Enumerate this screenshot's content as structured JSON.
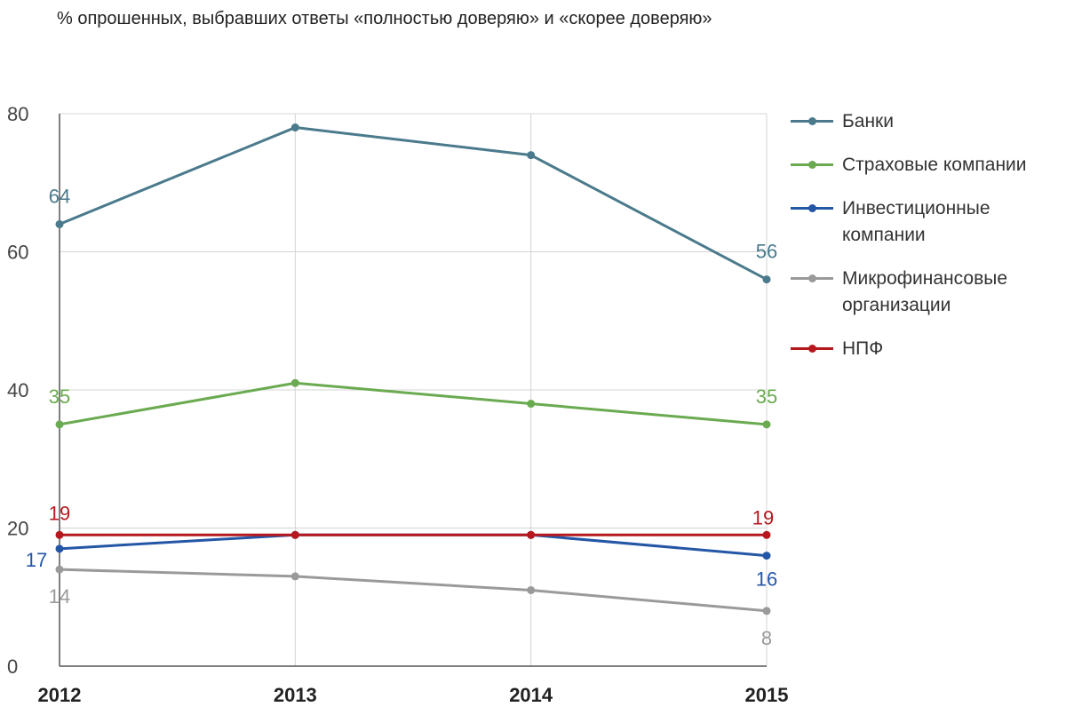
{
  "chart_data": {
    "type": "line",
    "title": "% опрошенных, выбравших ответы «полностью доверяю» и «скорее доверяю»",
    "xlabel": "",
    "ylabel": "",
    "categories": [
      "2012",
      "2013",
      "2014",
      "2015"
    ],
    "ylim": [
      0,
      80
    ],
    "yticks": [
      "0",
      "20",
      "40",
      "60",
      "80"
    ],
    "grid": true,
    "legend_position": "right",
    "series": [
      {
        "name": "Банки",
        "color": "#4a7a8c",
        "values": [
          64,
          78,
          74,
          56
        ],
        "labels": {
          "first": "64",
          "last": "56"
        }
      },
      {
        "name": "Страховые компании",
        "color": "#6aaa50",
        "values": [
          35,
          41,
          38,
          35
        ],
        "labels": {
          "first": "35",
          "last": "35"
        }
      },
      {
        "name": "Инвестиционные компании",
        "color": "#2456a6",
        "values": [
          17,
          19,
          19,
          16
        ],
        "labels": {
          "first": "17",
          "last": "16"
        }
      },
      {
        "name": "Микрофинансовые организации",
        "color": "#9a9a9a",
        "values": [
          14,
          13,
          11,
          8
        ],
        "labels": {
          "first": "14",
          "last": "8"
        }
      },
      {
        "name": "НПФ",
        "color": "#b5191e",
        "values": [
          19,
          19,
          19,
          19
        ],
        "labels": {
          "first": "19",
          "last": "19"
        }
      }
    ]
  }
}
